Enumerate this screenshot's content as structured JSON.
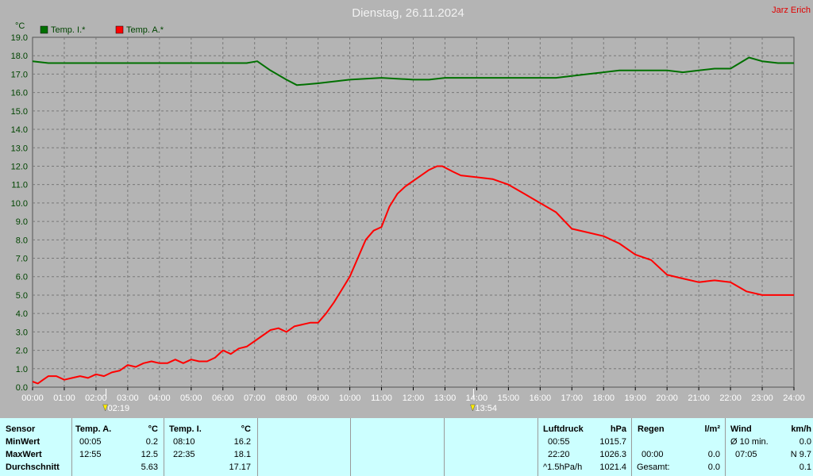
{
  "header": {
    "title": "Dienstag, 26.11.2024",
    "owner": "Jarz Erich",
    "unit": "°C"
  },
  "legend": [
    {
      "label": "Temp. I.*",
      "color": "#007000"
    },
    {
      "label": "Temp. A.*",
      "color": "#ff0000"
    }
  ],
  "chart_data": {
    "type": "line",
    "title": "Dienstag, 26.11.2024",
    "ylabel": "°C",
    "ylim": [
      0.0,
      19.0
    ],
    "xlim_hours": [
      0,
      24
    ],
    "grid": true,
    "legend_position": "top-left",
    "y_ticks": [
      "0.0",
      "1.0",
      "2.0",
      "3.0",
      "4.0",
      "5.0",
      "6.0",
      "7.0",
      "8.0",
      "9.0",
      "10.0",
      "11.0",
      "12.0",
      "13.0",
      "14.0",
      "15.0",
      "16.0",
      "17.0",
      "18.0",
      "19.0"
    ],
    "x_ticks": [
      "00:00",
      "01:00",
      "02:00",
      "03:00",
      "04:00",
      "05:00",
      "06:00",
      "07:00",
      "08:00",
      "09:00",
      "10:00",
      "11:00",
      "12:00",
      "13:00",
      "14:00",
      "15:00",
      "16:00",
      "17:00",
      "18:00",
      "19:00",
      "20:00",
      "21:00",
      "22:00",
      "23:00",
      "24:00"
    ],
    "series": [
      {
        "name": "Temp. I.*",
        "color": "#007000",
        "x": [
          "00:00",
          "00:30",
          "01:00",
          "02:00",
          "03:00",
          "04:00",
          "05:00",
          "06:00",
          "06:45",
          "07:05",
          "07:30",
          "08:00",
          "08:20",
          "09:00",
          "10:00",
          "11:00",
          "12:00",
          "12:30",
          "13:00",
          "14:00",
          "15:00",
          "16:00",
          "16:30",
          "17:00",
          "17:30",
          "18:00",
          "18:30",
          "19:00",
          "19:30",
          "20:00",
          "20:30",
          "21:00",
          "21:30",
          "22:00",
          "22:35",
          "23:00",
          "23:30",
          "24:00"
        ],
        "y": [
          17.7,
          17.6,
          17.6,
          17.6,
          17.6,
          17.6,
          17.6,
          17.6,
          17.6,
          17.7,
          17.2,
          16.7,
          16.4,
          16.5,
          16.7,
          16.8,
          16.7,
          16.7,
          16.8,
          16.8,
          16.8,
          16.8,
          16.8,
          16.9,
          17.0,
          17.1,
          17.2,
          17.2,
          17.2,
          17.2,
          17.1,
          17.2,
          17.3,
          17.3,
          17.9,
          17.7,
          17.6,
          17.6
        ]
      },
      {
        "name": "Temp. A.*",
        "color": "#ff0000",
        "x": [
          "00:00",
          "00:10",
          "00:20",
          "00:30",
          "00:45",
          "01:00",
          "01:15",
          "01:30",
          "01:45",
          "02:00",
          "02:15",
          "02:30",
          "02:45",
          "03:00",
          "03:15",
          "03:30",
          "03:45",
          "04:00",
          "04:15",
          "04:30",
          "04:45",
          "05:00",
          "05:15",
          "05:30",
          "05:45",
          "06:00",
          "06:15",
          "06:30",
          "06:45",
          "07:00",
          "07:15",
          "07:30",
          "07:45",
          "08:00",
          "08:15",
          "08:30",
          "08:45",
          "09:00",
          "09:15",
          "09:30",
          "09:45",
          "10:00",
          "10:15",
          "10:30",
          "10:45",
          "11:00",
          "11:15",
          "11:30",
          "11:45",
          "12:00",
          "12:15",
          "12:30",
          "12:45",
          "12:55",
          "13:15",
          "13:30",
          "14:00",
          "14:30",
          "15:00",
          "15:30",
          "16:00",
          "16:30",
          "17:00",
          "17:30",
          "18:00",
          "18:30",
          "19:00",
          "19:30",
          "20:00",
          "20:30",
          "21:00",
          "21:30",
          "22:00",
          "22:30",
          "23:00",
          "23:30",
          "24:00"
        ],
        "y": [
          0.3,
          0.2,
          0.4,
          0.6,
          0.6,
          0.4,
          0.5,
          0.6,
          0.5,
          0.7,
          0.6,
          0.8,
          0.9,
          1.2,
          1.1,
          1.3,
          1.4,
          1.3,
          1.3,
          1.5,
          1.3,
          1.5,
          1.4,
          1.4,
          1.6,
          2.0,
          1.8,
          2.1,
          2.2,
          2.5,
          2.8,
          3.1,
          3.2,
          3.0,
          3.3,
          3.4,
          3.5,
          3.5,
          4.0,
          4.6,
          5.3,
          6.0,
          7.0,
          8.0,
          8.5,
          8.7,
          9.8,
          10.5,
          10.9,
          11.2,
          11.5,
          11.8,
          12.0,
          12.0,
          11.7,
          11.5,
          11.4,
          11.3,
          11.0,
          10.5,
          10.0,
          9.5,
          8.6,
          8.4,
          8.2,
          7.8,
          7.2,
          6.9,
          6.1,
          5.9,
          5.7,
          5.8,
          5.7,
          5.2,
          5.0,
          5.0,
          5.0
        ]
      }
    ],
    "annotations": [
      {
        "time": "02:19",
        "text": "02:19",
        "marker": "min-marker"
      },
      {
        "time": "13:54",
        "text": "13:54",
        "marker": "max-marker"
      }
    ]
  },
  "stats": {
    "sensor": {
      "title": "Sensor",
      "rows": [
        "MinWert",
        "MaxWert",
        "Durchschnitt"
      ]
    },
    "temp_a": {
      "title": "Temp. A.",
      "unit": "°C",
      "min_time": "00:05",
      "min_val": "0.2",
      "max_time": "12:55",
      "max_val": "12.5",
      "avg": "5.63"
    },
    "temp_i": {
      "title": "Temp. I.",
      "unit": "°C",
      "min_time": "08:10",
      "min_val": "16.2",
      "max_time": "22:35",
      "max_val": "18.1",
      "avg": "17.17"
    },
    "pressure": {
      "title": "Luftdruck",
      "unit": "hPa",
      "min_time": "00:55",
      "min_val": "1015.7",
      "max_time": "22:20",
      "max_val": "1026.3",
      "trend_label": "^1.5hPa/h",
      "trend_val": "1021.4"
    },
    "rain": {
      "title": "Regen",
      "unit": "l/m²",
      "r2_time": "00:00",
      "r2_val": "0.0",
      "total_label": "Gesamt:",
      "total_val": "0.0"
    },
    "wind": {
      "title": "Wind",
      "unit": "km/h",
      "avg_label": "Ø 10 min.",
      "avg_val": "0.0",
      "max_time": "07:05",
      "max_val": "N 9.7",
      "last_val": "0.1"
    }
  }
}
